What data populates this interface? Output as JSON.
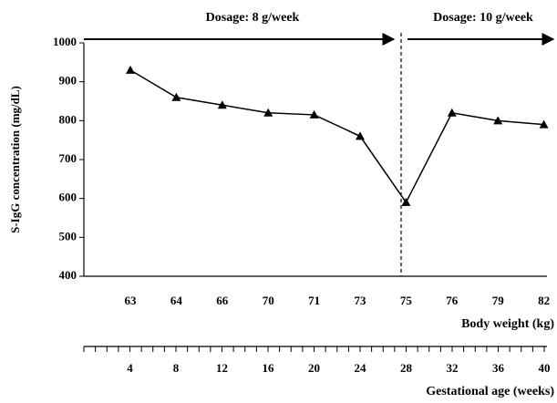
{
  "chart_data": {
    "type": "line",
    "categories": [
      "63",
      "64",
      "66",
      "70",
      "71",
      "73",
      "75",
      "76",
      "79",
      "82"
    ],
    "values": [
      930,
      860,
      840,
      820,
      815,
      760,
      590,
      820,
      800,
      790
    ],
    "color": "#000000",
    "ylim": [
      400,
      1000
    ],
    "yticks": [
      400,
      500,
      600,
      700,
      800,
      900,
      1000
    ],
    "ylabel": "S-IgG concentration (mg/dL)",
    "xlabel": "Body weight (kg)",
    "x2label": "Gestational age (weeks)",
    "x2lim": [
      0,
      40
    ],
    "x2ticks": [
      4,
      8,
      12,
      16,
      20,
      24,
      28,
      32,
      36,
      40
    ],
    "x2minor_ticks": [
      0,
      1,
      2,
      3,
      4,
      5,
      6,
      7,
      8,
      9,
      10,
      11,
      12,
      13,
      14,
      15,
      16,
      17,
      18,
      19,
      20,
      21,
      22,
      23,
      24,
      25,
      26,
      27,
      28,
      29,
      30,
      31,
      32,
      33,
      34,
      35,
      36,
      37,
      38,
      39,
      40
    ],
    "annotations": [
      "Dosage: 8 g/week",
      "Dosage: 10 g/week"
    ]
  }
}
